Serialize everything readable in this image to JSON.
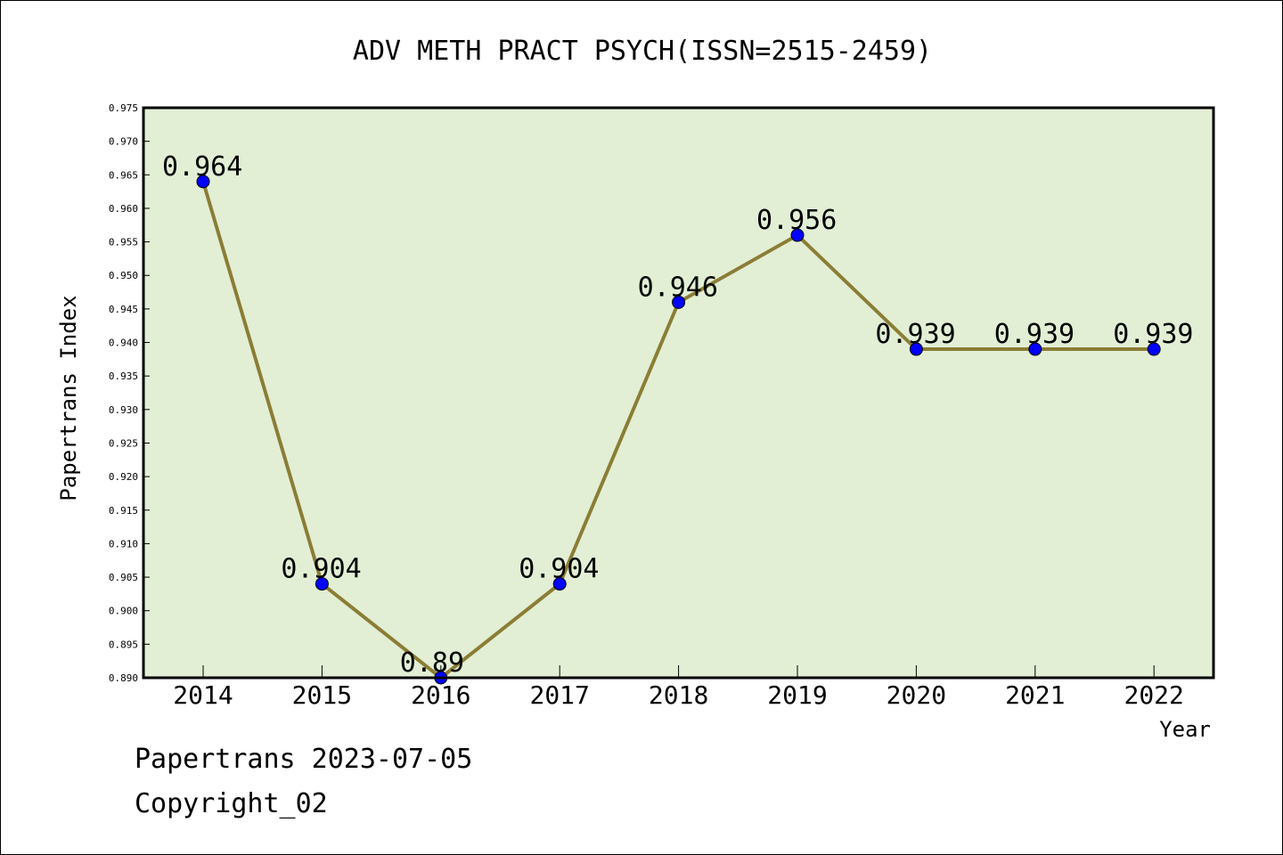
{
  "footer": {
    "line1": "Papertrans 2023-07-05",
    "line2": "Copyright_02"
  },
  "colors": {
    "plot_background": "#e2efd5",
    "line": "#8b7d35",
    "marker": "#0000ff"
  },
  "chart_data": {
    "type": "line",
    "title": "ADV METH PRACT PSYCH(ISSN=2515-2459)",
    "xlabel": "Year",
    "ylabel": "Papertrans Index",
    "ylim": [
      0.89,
      0.975
    ],
    "yticks": [
      "0.890",
      "0.895",
      "0.900",
      "0.905",
      "0.910",
      "0.915",
      "0.920",
      "0.925",
      "0.930",
      "0.935",
      "0.940",
      "0.945",
      "0.950",
      "0.955",
      "0.960",
      "0.965",
      "0.970",
      "0.975"
    ],
    "grid": false,
    "x": [
      "2014",
      "2015",
      "2016",
      "2017",
      "2018",
      "2019",
      "2020",
      "2021",
      "2022"
    ],
    "series": [
      {
        "values": [
          0.964,
          0.904,
          0.89,
          0.904,
          0.946,
          0.956,
          0.939,
          0.939,
          0.939
        ],
        "labels": [
          "0.964",
          "0.904",
          "0.89",
          "0.904",
          "0.946",
          "0.956",
          "0.939",
          "0.939",
          "0.939"
        ]
      }
    ]
  }
}
